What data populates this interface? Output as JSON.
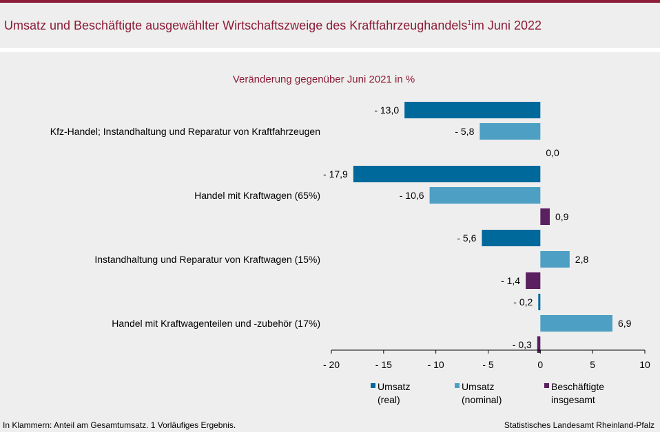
{
  "header": {
    "title_main": "Umsatz und Beschäftigte ausgewählter Wirtschaftszweige des Kraftfahrzeughandels",
    "title_sup": "1",
    "title_tail": "im Juni 2022"
  },
  "footer": {
    "footnote": "In Klammern: Anteil am Gesamtumsatz. 1 Vorläufiges Ergebnis.",
    "source": "Statistisches Landesamt Rheinland-Pfalz"
  },
  "chart_data": {
    "type": "bar",
    "orientation": "horizontal",
    "subtitle": "Veränderung gegenüber Juni 2021 in %",
    "categories": [
      "Kfz-Handel; Instandhaltung und Reparatur von Kraftfahrzeugen",
      "Handel mit Kraftwagen (65%)",
      "Instandhaltung und Reparatur von Kraftwagen (15%)",
      "Handel mit Kraftwagenteilen und -zubehör (17%)"
    ],
    "series": [
      {
        "name": "Umsatz (real)",
        "legend_lines": [
          "Umsatz",
          "(real)"
        ],
        "color": "#00699c",
        "values": [
          -13.0,
          -17.9,
          -5.6,
          -0.2
        ],
        "labels": [
          "- 13,0",
          "- 17,9",
          "- 5,6",
          "- 0,2"
        ]
      },
      {
        "name": "Umsatz (nominal)",
        "legend_lines": [
          "Umsatz",
          "(nominal)"
        ],
        "color": "#4d9fc4",
        "values": [
          -5.8,
          -10.6,
          2.8,
          6.9
        ],
        "labels": [
          "- 5,8",
          "- 10,6",
          "2,8",
          "6,9"
        ]
      },
      {
        "name": "Beschäftigte insgesamt",
        "legend_lines": [
          "Beschäftigte",
          "insgesamt"
        ],
        "color": "#5a2060",
        "values": [
          0.0,
          0.9,
          -1.4,
          -0.3
        ],
        "labels": [
          "0,0",
          "0,9",
          "- 1,4",
          "- 0,3"
        ]
      }
    ],
    "xlim": [
      -20,
      10
    ],
    "xticks": [
      -20,
      -15,
      -10,
      -5,
      0,
      5,
      10
    ],
    "xtick_labels": [
      "- 20",
      "- 15",
      "- 10",
      "- 5",
      "0",
      "5",
      "10"
    ],
    "legend_position": "bottom"
  }
}
